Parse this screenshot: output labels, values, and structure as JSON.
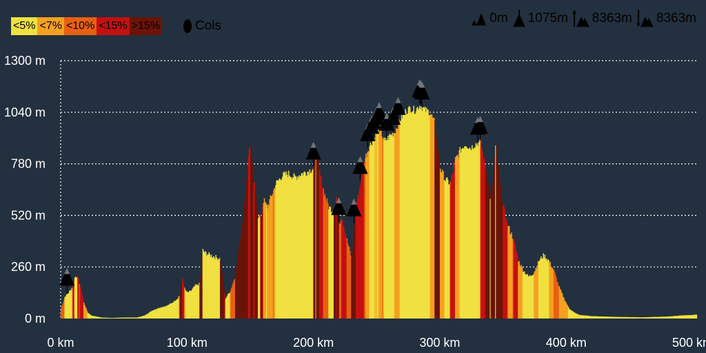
{
  "legend": {
    "items": [
      {
        "label": "<5%",
        "color": "#f0e040"
      },
      {
        "label": "<7%",
        "color": "#f5a020"
      },
      {
        "label": "<10%",
        "color": "#e86010"
      },
      {
        "label": "<15%",
        "color": "#c41010"
      },
      {
        "label": ">15%",
        "color": "#6a1408"
      }
    ],
    "cols_label": "Cols"
  },
  "stats": {
    "min_alt": "0m",
    "max_alt": "1075m",
    "ascent": "8363m",
    "descent": "8363m"
  },
  "chart_data": {
    "type": "area",
    "title": "",
    "xlabel": "",
    "ylabel": "",
    "x_ticks": [
      "0 km",
      "100 km",
      "200 km",
      "300 km",
      "400 km",
      "500 km"
    ],
    "y_ticks": [
      "0 m",
      "260 m",
      "520 m",
      "780 m",
      "1040 m",
      "1300 m"
    ],
    "xlim": [
      0,
      503
    ],
    "ylim": [
      0,
      1300
    ],
    "grid": true,
    "series": [
      {
        "x": [
          0,
          3,
          6,
          9,
          11,
          13,
          15,
          18,
          21,
          24,
          28,
          32,
          40,
          50,
          60,
          66,
          72,
          78,
          84,
          88,
          92,
          94,
          96,
          98,
          100,
          103,
          106,
          110,
          112,
          114,
          120,
          126,
          130,
          134,
          138,
          142,
          146,
          148,
          150,
          152,
          154,
          156,
          158,
          160,
          163,
          166,
          170,
          175,
          180,
          185,
          190,
          195,
          200,
          202,
          205,
          208,
          212,
          216,
          218,
          220,
          222,
          226,
          230,
          233,
          236,
          240,
          244,
          248,
          252,
          256,
          260,
          264,
          268,
          272,
          276,
          280,
          284,
          288,
          292,
          296,
          300,
          304,
          308,
          312,
          316,
          320,
          324,
          328,
          332,
          334,
          336,
          338,
          340,
          342,
          344,
          346,
          348,
          350,
          354,
          358,
          362,
          366,
          370,
          374,
          378,
          382,
          386,
          390,
          394,
          398,
          402,
          406,
          410,
          420,
          440,
          460,
          480,
          490,
          500,
          503
        ],
        "y": [
          50,
          110,
          130,
          160,
          210,
          215,
          165,
          80,
          30,
          15,
          10,
          5,
          3,
          5,
          5,
          15,
          40,
          55,
          65,
          80,
          100,
          120,
          200,
          145,
          130,
          140,
          165,
          175,
          345,
          330,
          315,
          300,
          100,
          140,
          220,
          420,
          620,
          820,
          880,
          700,
          640,
          520,
          500,
          600,
          560,
          610,
          680,
          720,
          730,
          710,
          730,
          740,
          760,
          840,
          720,
          640,
          560,
          540,
          620,
          480,
          520,
          400,
          300,
          560,
          650,
          800,
          870,
          910,
          960,
          890,
          920,
          940,
          1000,
          1040,
          1060,
          1050,
          1075,
          1050,
          1040,
          980,
          760,
          700,
          680,
          800,
          850,
          880,
          860,
          880,
          890,
          820,
          760,
          680,
          600,
          700,
          880,
          760,
          640,
          560,
          460,
          400,
          290,
          240,
          210,
          230,
          290,
          320,
          290,
          240,
          160,
          100,
          50,
          30,
          18,
          12,
          8,
          6,
          10,
          15,
          18,
          20
        ]
      }
    ],
    "cols_km": [
      5,
      200,
      220,
      232,
      237,
      243,
      246,
      248,
      250,
      252,
      258,
      263,
      267,
      284,
      285,
      286,
      330,
      332
    ]
  }
}
